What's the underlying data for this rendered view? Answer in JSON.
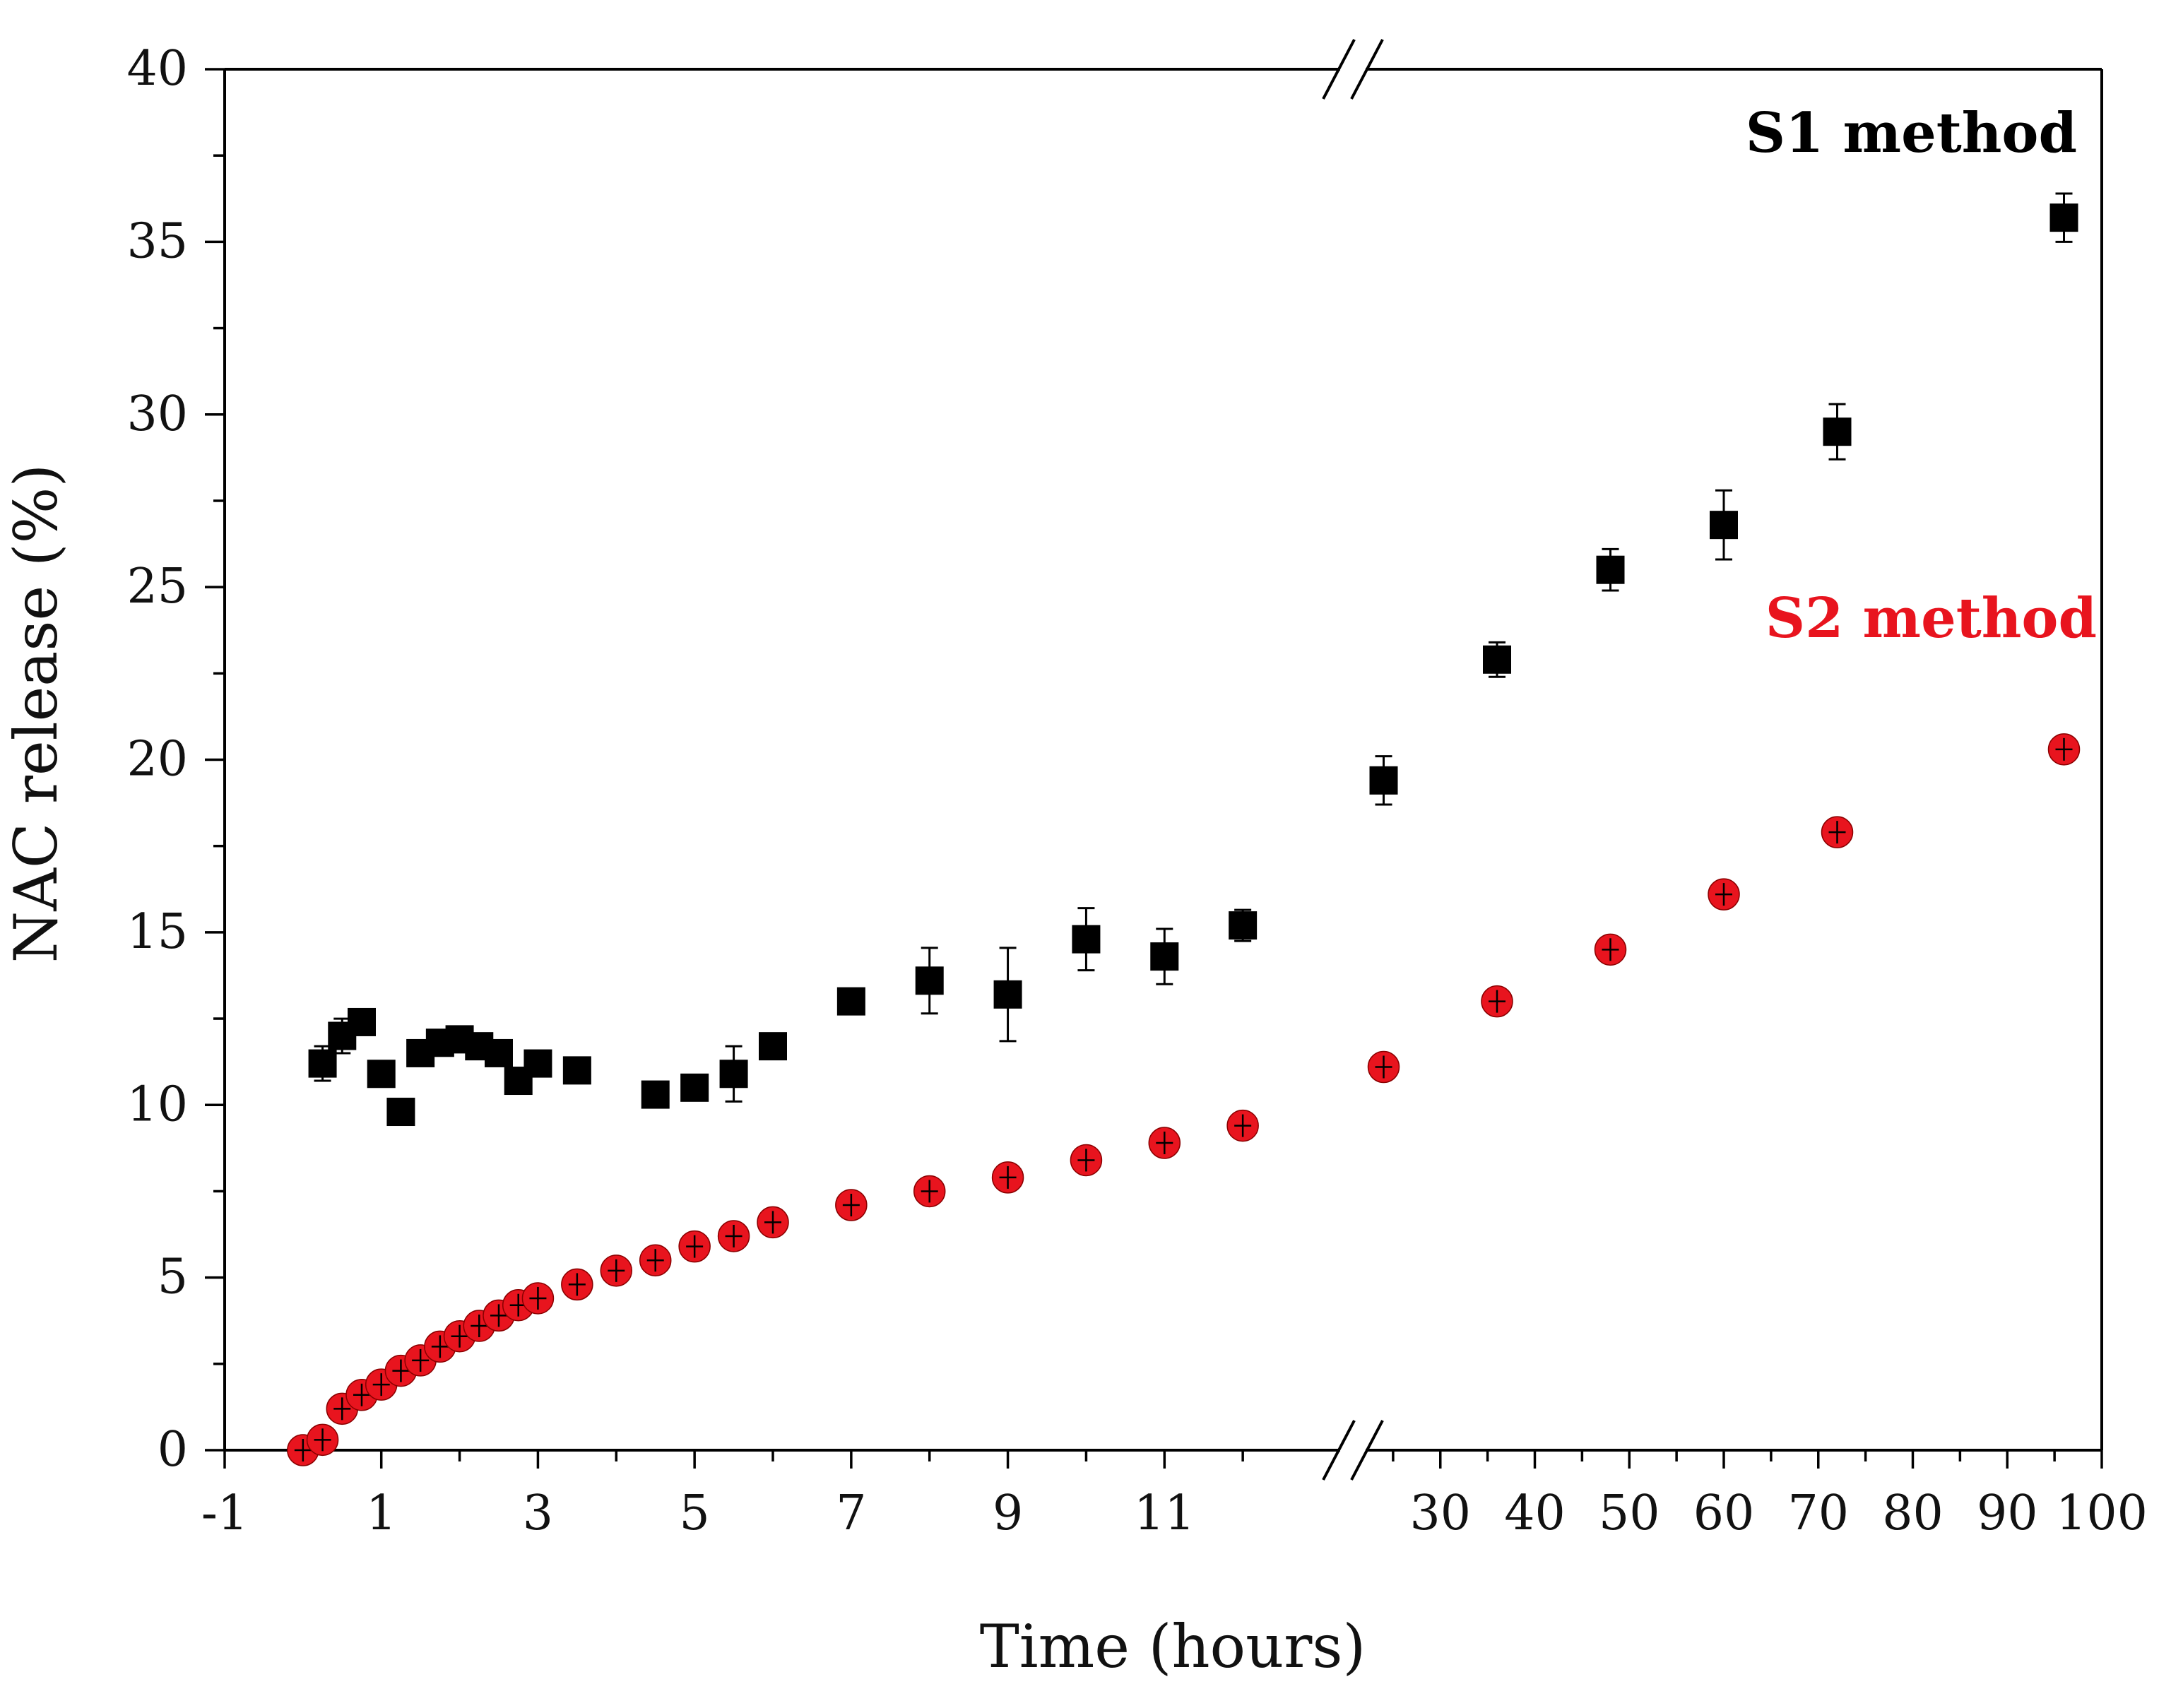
{
  "chart_data": {
    "type": "scatter",
    "title": "",
    "xlabel": "Time (hours)",
    "ylabel": "NAC release (%)",
    "ylim": [
      0,
      40
    ],
    "yticks": [
      0,
      5,
      10,
      15,
      20,
      25,
      30,
      35,
      40
    ],
    "x_segment_1": {
      "range": [
        -1,
        13
      ],
      "ticks": [
        -1,
        1,
        3,
        5,
        7,
        9,
        11
      ]
    },
    "x_segment_2": {
      "range": [
        20,
        100
      ],
      "ticks": [
        30,
        40,
        50,
        60,
        70,
        80,
        90,
        100
      ]
    },
    "axis_break": true,
    "colors": {
      "s1": "#000000",
      "s2": "#e8141e"
    },
    "series": [
      {
        "name": "S1 method",
        "marker": "square",
        "points": [
          {
            "x": 0.25,
            "y": 11.2,
            "err": 0.5
          },
          {
            "x": 0.5,
            "y": 12.0,
            "err": 0.5
          },
          {
            "x": 0.75,
            "y": 12.4,
            "err": 0.3
          },
          {
            "x": 1.0,
            "y": 10.9,
            "err": 0.3
          },
          {
            "x": 1.25,
            "y": 9.8,
            "err": 0.3
          },
          {
            "x": 1.5,
            "y": 11.5,
            "err": 0.3
          },
          {
            "x": 1.75,
            "y": 11.8,
            "err": 0.3
          },
          {
            "x": 2.0,
            "y": 11.9,
            "err": 0.3
          },
          {
            "x": 2.25,
            "y": 11.7,
            "err": 0.3
          },
          {
            "x": 2.5,
            "y": 11.5,
            "err": 0.3
          },
          {
            "x": 2.75,
            "y": 10.7,
            "err": 0.3
          },
          {
            "x": 3.0,
            "y": 11.2,
            "err": 0.3
          },
          {
            "x": 3.5,
            "y": 11.0,
            "err": 0.3
          },
          {
            "x": 4.5,
            "y": 10.3,
            "err": 0.3
          },
          {
            "x": 5.0,
            "y": 10.5,
            "err": 0.3
          },
          {
            "x": 5.5,
            "y": 10.9,
            "err": 0.8
          },
          {
            "x": 6.0,
            "y": 11.7,
            "err": 0.3
          },
          {
            "x": 7.0,
            "y": 13.0,
            "err": 0.3
          },
          {
            "x": 8.0,
            "y": 13.6,
            "err": 0.95
          },
          {
            "x": 9.0,
            "y": 13.2,
            "err": 1.35
          },
          {
            "x": 10.0,
            "y": 14.8,
            "err": 0.9
          },
          {
            "x": 11.0,
            "y": 14.3,
            "err": 0.8
          },
          {
            "x": 12.0,
            "y": 15.2,
            "err": 0.45
          },
          {
            "x": 24,
            "y": 19.4,
            "err": 0.7
          },
          {
            "x": 36,
            "y": 22.9,
            "err": 0.5
          },
          {
            "x": 48,
            "y": 25.5,
            "err": 0.6
          },
          {
            "x": 60,
            "y": 26.8,
            "err": 1.0
          },
          {
            "x": 72,
            "y": 29.5,
            "err": 0.8
          },
          {
            "x": 96,
            "y": 35.7,
            "err": 0.7
          }
        ]
      },
      {
        "name": "S2 method",
        "marker": "circle",
        "points": [
          {
            "x": 0.0,
            "y": 0.0
          },
          {
            "x": 0.25,
            "y": 0.3
          },
          {
            "x": 0.5,
            "y": 1.2
          },
          {
            "x": 0.75,
            "y": 1.6
          },
          {
            "x": 1.0,
            "y": 1.9
          },
          {
            "x": 1.25,
            "y": 2.3
          },
          {
            "x": 1.5,
            "y": 2.6
          },
          {
            "x": 1.75,
            "y": 3.0
          },
          {
            "x": 2.0,
            "y": 3.3
          },
          {
            "x": 2.25,
            "y": 3.6
          },
          {
            "x": 2.5,
            "y": 3.9
          },
          {
            "x": 2.75,
            "y": 4.2
          },
          {
            "x": 3.0,
            "y": 4.4
          },
          {
            "x": 3.5,
            "y": 4.8
          },
          {
            "x": 4.0,
            "y": 5.2
          },
          {
            "x": 4.5,
            "y": 5.5
          },
          {
            "x": 5.0,
            "y": 5.9
          },
          {
            "x": 5.5,
            "y": 6.2
          },
          {
            "x": 6.0,
            "y": 6.6
          },
          {
            "x": 7.0,
            "y": 7.1
          },
          {
            "x": 8.0,
            "y": 7.5
          },
          {
            "x": 9.0,
            "y": 7.9
          },
          {
            "x": 10.0,
            "y": 8.4
          },
          {
            "x": 11.0,
            "y": 8.9
          },
          {
            "x": 12.0,
            "y": 9.4
          },
          {
            "x": 24,
            "y": 11.1
          },
          {
            "x": 36,
            "y": 13.0
          },
          {
            "x": 48,
            "y": 14.5
          },
          {
            "x": 60,
            "y": 16.1
          },
          {
            "x": 72,
            "y": 17.9
          },
          {
            "x": 96,
            "y": 20.3
          }
        ]
      }
    ],
    "legend": [
      {
        "label": "S1 method",
        "color": "#000000",
        "position": "top-right"
      },
      {
        "label": "S2 method",
        "color": "#e8141e",
        "position": "right"
      }
    ]
  }
}
